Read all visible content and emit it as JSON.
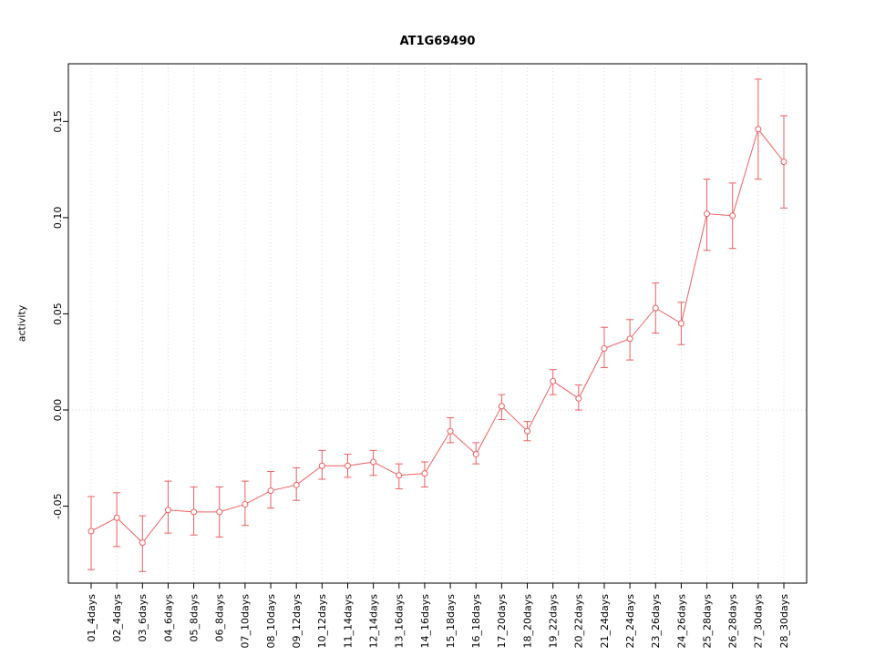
{
  "chart_data": {
    "type": "line",
    "title": "AT1G69490",
    "xlabel": "",
    "ylabel": "activity",
    "ylim": [
      -0.09,
      0.18
    ],
    "yticks": [
      -0.05,
      0.0,
      0.05,
      0.1,
      0.15
    ],
    "grid": {
      "vertical_dotted": true,
      "zero_line_dotted": true,
      "grid_color": "#d9d9d9"
    },
    "legend": "none",
    "series_color": "#ee5f5f",
    "point_style": "open-circle",
    "categories": [
      "01_4days",
      "02_4days",
      "03_6days",
      "04_6days",
      "05_8days",
      "06_8days",
      "07_10days",
      "08_10days",
      "09_12days",
      "10_12days",
      "11_14days",
      "12_14days",
      "13_16days",
      "14_16days",
      "15_18days",
      "16_18days",
      "17_20days",
      "18_20days",
      "19_22days",
      "20_22days",
      "21_24days",
      "22_24days",
      "23_26days",
      "24_26days",
      "25_28days",
      "26_28days",
      "27_30days",
      "28_30days"
    ],
    "series": [
      {
        "name": "activity",
        "means": [
          -0.063,
          -0.056,
          -0.069,
          -0.052,
          -0.053,
          -0.053,
          -0.049,
          -0.042,
          -0.039,
          -0.029,
          -0.029,
          -0.027,
          -0.034,
          -0.033,
          -0.011,
          -0.023,
          0.002,
          -0.011,
          0.015,
          0.006,
          0.032,
          0.037,
          0.053,
          0.045,
          0.102,
          0.101,
          0.146,
          0.129
        ],
        "err_low": [
          -0.083,
          -0.071,
          -0.084,
          -0.064,
          -0.065,
          -0.066,
          -0.06,
          -0.051,
          -0.047,
          -0.036,
          -0.035,
          -0.034,
          -0.041,
          -0.04,
          -0.017,
          -0.028,
          -0.005,
          -0.016,
          0.008,
          0.0,
          0.022,
          0.026,
          0.04,
          0.034,
          0.083,
          0.084,
          0.12,
          0.105
        ],
        "err_high": [
          -0.045,
          -0.043,
          -0.055,
          -0.037,
          -0.04,
          -0.04,
          -0.037,
          -0.032,
          -0.03,
          -0.021,
          -0.023,
          -0.021,
          -0.028,
          -0.027,
          -0.004,
          -0.017,
          0.008,
          -0.006,
          0.021,
          0.013,
          0.043,
          0.047,
          0.066,
          0.056,
          0.12,
          0.118,
          0.172,
          0.153
        ]
      }
    ]
  }
}
